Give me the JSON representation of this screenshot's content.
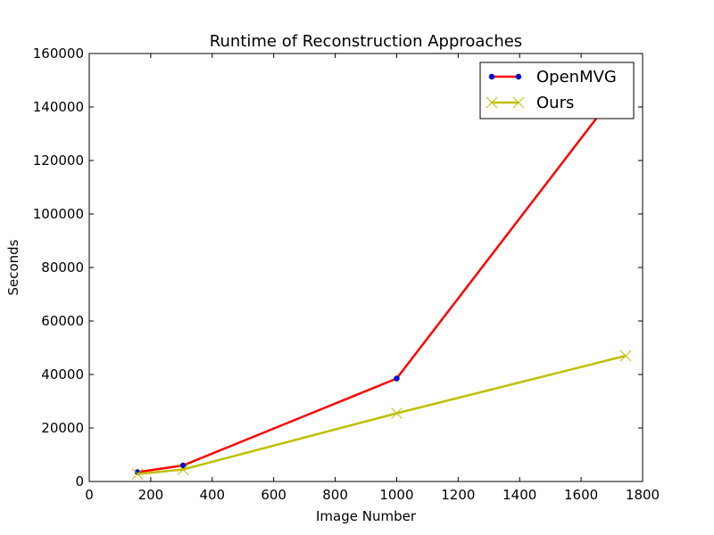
{
  "chart_data": {
    "type": "line",
    "title": "Runtime of Reconstruction Approaches",
    "xlabel": "Image Number",
    "ylabel": "Seconds",
    "xlim": [
      0,
      1800
    ],
    "ylim": [
      0,
      160000
    ],
    "xticks": [
      0,
      200,
      400,
      600,
      800,
      1000,
      1200,
      1400,
      1600,
      1800
    ],
    "yticks": [
      0,
      20000,
      40000,
      60000,
      80000,
      100000,
      120000,
      140000,
      160000
    ],
    "grid": false,
    "legend_position": "top-right",
    "series": [
      {
        "name": "OpenMVG",
        "color": "#ff0000",
        "marker": "dot",
        "marker_color": "#0000ff",
        "x": [
          157,
          305,
          1000,
          1745
        ],
        "y": [
          3500,
          6000,
          38500,
          150000
        ]
      },
      {
        "name": "Ours",
        "color": "#bfbf00",
        "marker": "x",
        "marker_color": "#bfbf00",
        "x": [
          157,
          305,
          1000,
          1745
        ],
        "y": [
          2800,
          4500,
          25500,
          47000
        ]
      }
    ]
  }
}
